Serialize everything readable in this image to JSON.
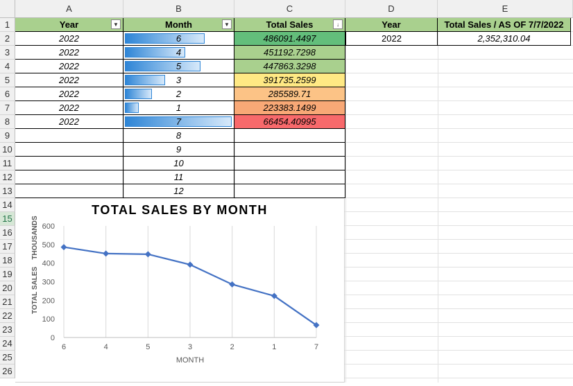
{
  "columns": [
    "A",
    "B",
    "C",
    "D",
    "E"
  ],
  "rows": [
    "1",
    "2",
    "3",
    "4",
    "5",
    "6",
    "7",
    "8",
    "9",
    "10",
    "11",
    "12",
    "13",
    "14",
    "15",
    "16",
    "17",
    "18",
    "19",
    "20",
    "21",
    "22",
    "23",
    "24",
    "25",
    "26"
  ],
  "table1": {
    "headers": {
      "year": "Year",
      "month": "Month",
      "total_sales": "Total Sales"
    },
    "rows": [
      {
        "year": "2022",
        "month": "6",
        "sales": "486091.4497",
        "bar_fraction": 0.74,
        "color": "#63be7b"
      },
      {
        "year": "2022",
        "month": "4",
        "sales": "451192.7298",
        "bar_fraction": 0.56,
        "color": "#a9d08e"
      },
      {
        "year": "2022",
        "month": "5",
        "sales": "447863.3298",
        "bar_fraction": 0.7,
        "color": "#a9d08e"
      },
      {
        "year": "2022",
        "month": "3",
        "sales": "391735.2599",
        "bar_fraction": 0.37,
        "color": "#ffe984"
      },
      {
        "year": "2022",
        "month": "2",
        "sales": "285589.71",
        "bar_fraction": 0.25,
        "color": "#fcc386"
      },
      {
        "year": "2022",
        "month": "1",
        "sales": "223383.1499",
        "bar_fraction": 0.13,
        "color": "#f8a876"
      },
      {
        "year": "2022",
        "month": "7",
        "sales": "66454.40995",
        "bar_fraction": 0.99,
        "color": "#f8696b"
      }
    ],
    "extra_months": [
      "8",
      "9",
      "10",
      "11",
      "12"
    ]
  },
  "table2": {
    "headers": {
      "year": "Year",
      "total": "Total Sales / AS OF 7/7/2022"
    },
    "year": "2022",
    "total": "2,352,310.04"
  },
  "chart_data": {
    "type": "line",
    "title": "TOTAL SALES BY MONTH",
    "ylabel_left": "TOTAL SALES",
    "ylabel_units": "THOUSANDS",
    "xlabel": "MONTH",
    "categories": [
      "6",
      "4",
      "5",
      "3",
      "2",
      "1",
      "7"
    ],
    "values": [
      486.09,
      451.19,
      447.86,
      391.74,
      285.59,
      223.38,
      66.45
    ],
    "ylim": [
      0,
      600
    ],
    "yticks": [
      "0",
      "100",
      "200",
      "300",
      "400",
      "500",
      "600"
    ],
    "line_color": "#4472c4",
    "grid": "vertical"
  }
}
